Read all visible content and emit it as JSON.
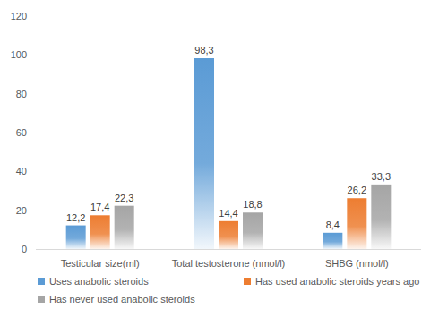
{
  "chart_data": {
    "type": "bar",
    "categories": [
      "Testicular size(ml)",
      "Total testosterone (nmol/l)",
      "SHBG (nmol/l)"
    ],
    "series": [
      {
        "name": "Uses anabolic steroids",
        "color": "#5b9bd5",
        "values": [
          12.2,
          98.3,
          8.4
        ],
        "value_labels": [
          "12,2",
          "98,3",
          "8,4"
        ]
      },
      {
        "name": "Has used anabolic steroids years ago",
        "color": "#ed7d31",
        "values": [
          17.4,
          14.4,
          26.2
        ],
        "value_labels": [
          "17,4",
          "14,4",
          "26,2"
        ]
      },
      {
        "name": "Has never used anabolic steroids",
        "color": "#a5a5a5",
        "values": [
          22.3,
          18.8,
          33.3
        ],
        "value_labels": [
          "22,3",
          "18,8",
          "33,3"
        ]
      }
    ],
    "ylim": [
      0,
      120
    ],
    "yticks": [
      0,
      20,
      40,
      60,
      80,
      100,
      120
    ],
    "grid": false,
    "legend": "bottom",
    "data_labels": true
  }
}
